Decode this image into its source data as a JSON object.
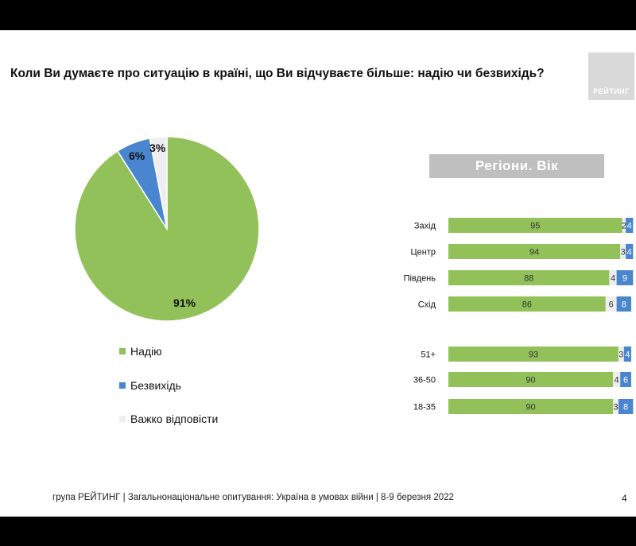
{
  "title": "Коли Ви думаєте про ситуацію в країні, що Ви відчуваєте більше: надію чи безвихідь?",
  "logo_text": "РЕЙТИНГ",
  "banner": "Регіони. Вік",
  "footer": "група РЕЙТИНГ | Загальнонаціональне опитування: Україна в умовах війни | 8-9 березня 2022",
  "page_number": "4",
  "colors": {
    "hope": "#92c15a",
    "despair": "#4a86d0",
    "hard": "#eeeeee"
  },
  "chart_data": [
    {
      "type": "pie",
      "slices": [
        {
          "name": "Надію",
          "value": 91,
          "label": "91%"
        },
        {
          "name": "Безвихідь",
          "value": 6,
          "label": "6%"
        },
        {
          "name": "Важко відповісти",
          "value": 3,
          "label": "3%"
        }
      ]
    },
    {
      "type": "bar",
      "stacked": true,
      "orientation": "horizontal",
      "categories": [
        "Захід",
        "Центр",
        "Південь",
        "Схід",
        "51+",
        "36-50",
        "18-35"
      ],
      "series": [
        {
          "name": "Надію",
          "values": [
            95,
            94,
            88,
            86,
            93,
            90,
            90
          ]
        },
        {
          "name": "Важко відповісти",
          "values": [
            2,
            3,
            4,
            6,
            3,
            4,
            3
          ]
        },
        {
          "name": "Безвихідь",
          "values": [
            4,
            4,
            9,
            8,
            4,
            6,
            8
          ]
        }
      ]
    }
  ]
}
